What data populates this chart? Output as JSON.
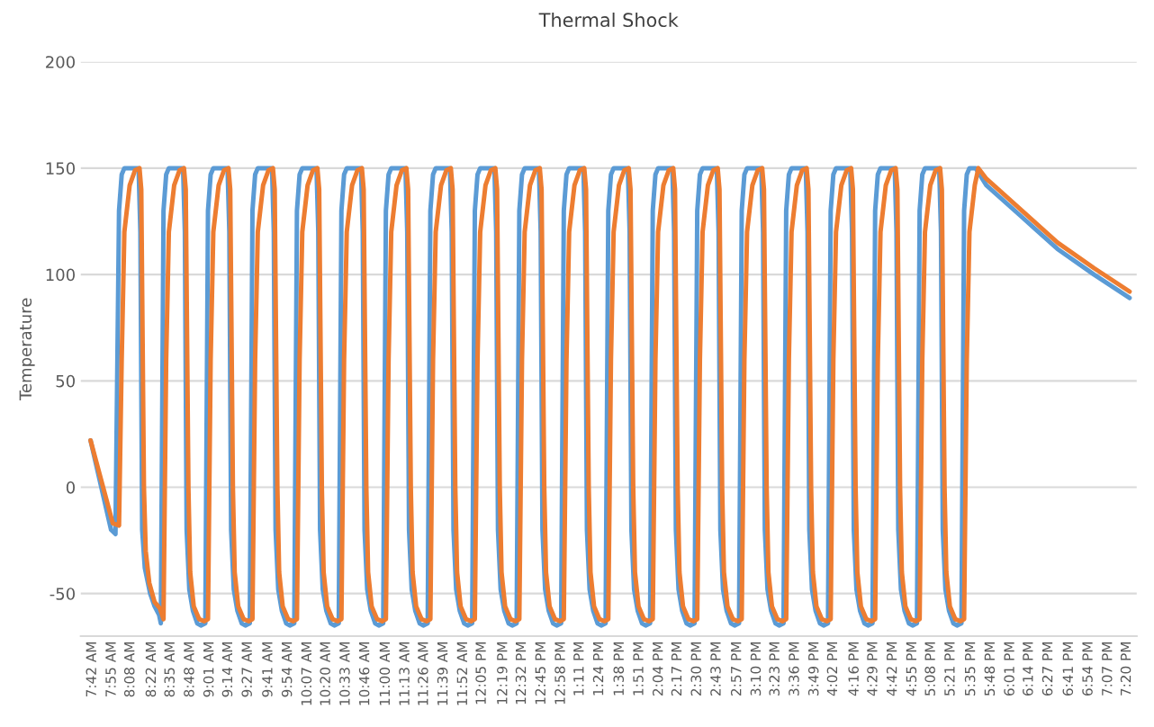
{
  "chart_data": {
    "type": "line",
    "title": "Thermal Shock",
    "ylabel": "Temperature",
    "xlim": [
      7.57,
      19.44
    ],
    "ylim": [
      -70,
      200
    ],
    "yticks": [
      -50,
      0,
      50,
      100,
      150,
      200
    ],
    "grid": "y",
    "legend": false,
    "marker": "none",
    "line_style": "solid",
    "xticks": [
      {
        "value": 7.7,
        "label": "7:42 AM"
      },
      {
        "value": 7.92,
        "label": "7:55 AM"
      },
      {
        "value": 8.13,
        "label": "8:08 AM"
      },
      {
        "value": 8.37,
        "label": "8:22 AM"
      },
      {
        "value": 8.58,
        "label": "8:35 AM"
      },
      {
        "value": 8.8,
        "label": "8:48 AM"
      },
      {
        "value": 9.02,
        "label": "9:01 AM"
      },
      {
        "value": 9.23,
        "label": "9:14 AM"
      },
      {
        "value": 9.45,
        "label": "9:27 AM"
      },
      {
        "value": 9.68,
        "label": "9:41 AM"
      },
      {
        "value": 9.9,
        "label": "9:54 AM"
      },
      {
        "value": 10.12,
        "label": "10:07 AM"
      },
      {
        "value": 10.33,
        "label": "10:20 AM"
      },
      {
        "value": 10.55,
        "label": "10:33 AM"
      },
      {
        "value": 10.77,
        "label": "10:46 AM"
      },
      {
        "value": 11,
        "label": "11:00 AM"
      },
      {
        "value": 11.22,
        "label": "11:13 AM"
      },
      {
        "value": 11.43,
        "label": "11:26 AM"
      },
      {
        "value": 11.65,
        "label": "11:39 AM"
      },
      {
        "value": 11.87,
        "label": "11:52 AM"
      },
      {
        "value": 12.08,
        "label": "12:05 PM"
      },
      {
        "value": 12.32,
        "label": "12:19 PM"
      },
      {
        "value": 12.53,
        "label": "12:32 PM"
      },
      {
        "value": 12.75,
        "label": "12:45 PM"
      },
      {
        "value": 12.97,
        "label": "12:58 PM"
      },
      {
        "value": 13.18,
        "label": "1:11 PM"
      },
      {
        "value": 13.4,
        "label": "1:24 PM"
      },
      {
        "value": 13.63,
        "label": "1:38 PM"
      },
      {
        "value": 13.85,
        "label": "1:51 PM"
      },
      {
        "value": 14.07,
        "label": "2:04 PM"
      },
      {
        "value": 14.28,
        "label": "2:17 PM"
      },
      {
        "value": 14.5,
        "label": "2:30 PM"
      },
      {
        "value": 14.72,
        "label": "2:43 PM"
      },
      {
        "value": 14.95,
        "label": "2:57 PM"
      },
      {
        "value": 15.17,
        "label": "3:10 PM"
      },
      {
        "value": 15.38,
        "label": "3:23 PM"
      },
      {
        "value": 15.6,
        "label": "3:36 PM"
      },
      {
        "value": 15.82,
        "label": "3:49 PM"
      },
      {
        "value": 16.03,
        "label": "4:02 PM"
      },
      {
        "value": 16.27,
        "label": "4:16 PM"
      },
      {
        "value": 16.48,
        "label": "4:29 PM"
      },
      {
        "value": 16.7,
        "label": "4:42 PM"
      },
      {
        "value": 16.92,
        "label": "4:55 PM"
      },
      {
        "value": 17.13,
        "label": "5:08 PM"
      },
      {
        "value": 17.35,
        "label": "5:21 PM"
      },
      {
        "value": 17.58,
        "label": "5:35 PM"
      },
      {
        "value": 17.8,
        "label": "5:48 PM"
      },
      {
        "value": 18.02,
        "label": "6:01 PM"
      },
      {
        "value": 18.23,
        "label": "6:14 PM"
      },
      {
        "value": 18.45,
        "label": "6:27 PM"
      },
      {
        "value": 18.68,
        "label": "6:41 PM"
      },
      {
        "value": 18.9,
        "label": "6:54 PM"
      },
      {
        "value": 19.12,
        "label": "7:07 PM"
      },
      {
        "value": 19.33,
        "label": "7:20 PM"
      }
    ],
    "series": [
      {
        "color": "#5b9bd5",
        "x": [
          7.68,
          7.91,
          7.96,
          8.0,
          8.03,
          8.06,
          8.22,
          8.24,
          8.26,
          8.29,
          8.35,
          8.4,
          8.45,
          8.47,
          8.5,
          8.53,
          8.56,
          8.72,
          8.74,
          8.76,
          8.79,
          8.83,
          8.88,
          8.92,
          8.97,
          9.0,
          9.03,
          9.06,
          9.22,
          9.24,
          9.26,
          9.29,
          9.33,
          9.38,
          9.42,
          9.47,
          9.5,
          9.53,
          9.56,
          9.72,
          9.74,
          9.76,
          9.79,
          9.83,
          9.88,
          9.92,
          9.97,
          10.0,
          10.03,
          10.06,
          10.22,
          10.24,
          10.26,
          10.29,
          10.33,
          10.38,
          10.42,
          10.47,
          10.5,
          10.53,
          10.56,
          10.72,
          10.74,
          10.76,
          10.79,
          10.83,
          10.88,
          10.92,
          10.97,
          11.0,
          11.03,
          11.06,
          11.22,
          11.24,
          11.26,
          11.29,
          11.33,
          11.38,
          11.42,
          11.47,
          11.5,
          11.53,
          11.56,
          11.72,
          11.74,
          11.76,
          11.79,
          11.83,
          11.88,
          11.92,
          11.97,
          12.0,
          12.03,
          12.06,
          12.22,
          12.24,
          12.26,
          12.29,
          12.33,
          12.38,
          12.42,
          12.47,
          12.5,
          12.53,
          12.56,
          12.72,
          12.74,
          12.76,
          12.79,
          12.83,
          12.88,
          12.92,
          12.97,
          13.0,
          13.03,
          13.06,
          13.22,
          13.24,
          13.26,
          13.29,
          13.33,
          13.38,
          13.42,
          13.47,
          13.5,
          13.53,
          13.56,
          13.72,
          13.74,
          13.76,
          13.79,
          13.83,
          13.88,
          13.92,
          13.97,
          14.0,
          14.03,
          14.06,
          14.22,
          14.24,
          14.26,
          14.29,
          14.33,
          14.38,
          14.42,
          14.47,
          14.5,
          14.53,
          14.56,
          14.72,
          14.74,
          14.76,
          14.79,
          14.83,
          14.88,
          14.92,
          14.97,
          15.0,
          15.03,
          15.06,
          15.22,
          15.24,
          15.26,
          15.29,
          15.33,
          15.38,
          15.42,
          15.47,
          15.5,
          15.53,
          15.56,
          15.72,
          15.74,
          15.76,
          15.79,
          15.83,
          15.88,
          15.92,
          15.97,
          16.0,
          16.03,
          16.06,
          16.22,
          16.24,
          16.26,
          16.29,
          16.33,
          16.38,
          16.42,
          16.47,
          16.5,
          16.53,
          16.56,
          16.72,
          16.74,
          16.76,
          16.79,
          16.83,
          16.88,
          16.92,
          16.97,
          17.0,
          17.03,
          17.06,
          17.22,
          17.24,
          17.26,
          17.29,
          17.33,
          17.38,
          17.42,
          17.47,
          17.5,
          17.53,
          17.56,
          17.63,
          17.75,
          18.15,
          18.55,
          18.96,
          19.36
        ],
        "values": [
          22,
          -20,
          -22,
          130,
          147,
          150,
          150,
          120,
          -20,
          -38,
          -50,
          -56,
          -60,
          -64,
          130,
          147,
          150,
          150,
          120,
          -20,
          -48,
          -58,
          -64,
          -65,
          -64,
          130,
          147,
          150,
          150,
          120,
          -20,
          -48,
          -58,
          -64,
          -65,
          -64,
          130,
          147,
          150,
          150,
          120,
          -20,
          -48,
          -58,
          -64,
          -65,
          -64,
          130,
          147,
          150,
          150,
          120,
          -20,
          -48,
          -58,
          -64,
          -65,
          -64,
          130,
          147,
          150,
          150,
          120,
          -20,
          -48,
          -58,
          -64,
          -65,
          -64,
          130,
          147,
          150,
          150,
          120,
          -20,
          -48,
          -58,
          -64,
          -65,
          -64,
          130,
          147,
          150,
          150,
          120,
          -20,
          -48,
          -58,
          -64,
          -65,
          -64,
          130,
          147,
          150,
          150,
          120,
          -20,
          -48,
          -58,
          -64,
          -65,
          -64,
          130,
          147,
          150,
          150,
          120,
          -20,
          -48,
          -58,
          -64,
          -65,
          -64,
          130,
          147,
          150,
          150,
          120,
          -20,
          -48,
          -58,
          -64,
          -65,
          -64,
          130,
          147,
          150,
          150,
          120,
          -20,
          -48,
          -58,
          -64,
          -65,
          -64,
          130,
          147,
          150,
          150,
          120,
          -20,
          -48,
          -58,
          -64,
          -65,
          -64,
          130,
          147,
          150,
          150,
          120,
          -20,
          -48,
          -58,
          -64,
          -65,
          -64,
          130,
          147,
          150,
          150,
          120,
          -20,
          -48,
          -58,
          -64,
          -65,
          -64,
          130,
          147,
          150,
          150,
          120,
          -20,
          -48,
          -58,
          -64,
          -65,
          -64,
          130,
          147,
          150,
          150,
          120,
          -20,
          -48,
          -58,
          -64,
          -65,
          -64,
          130,
          147,
          150,
          150,
          120,
          -20,
          -48,
          -58,
          -64,
          -65,
          -64,
          130,
          147,
          150,
          150,
          120,
          -20,
          -48,
          -58,
          -64,
          -65,
          -64,
          130,
          147,
          150,
          150,
          142,
          127,
          112,
          100,
          89
        ]
      },
      {
        "color": "#ed7d31",
        "x": [
          7.68,
          7.93,
          8.0,
          8.03,
          8.06,
          8.12,
          8.18,
          8.23,
          8.25,
          8.28,
          8.3,
          8.34,
          8.4,
          8.46,
          8.5,
          8.53,
          8.56,
          8.62,
          8.68,
          8.73,
          8.75,
          8.78,
          8.8,
          8.84,
          8.9,
          8.96,
          9.0,
          9.03,
          9.06,
          9.12,
          9.18,
          9.23,
          9.25,
          9.28,
          9.3,
          9.34,
          9.4,
          9.46,
          9.5,
          9.53,
          9.56,
          9.62,
          9.68,
          9.73,
          9.75,
          9.78,
          9.8,
          9.84,
          9.9,
          9.96,
          10.0,
          10.03,
          10.06,
          10.12,
          10.18,
          10.23,
          10.25,
          10.28,
          10.3,
          10.34,
          10.4,
          10.46,
          10.5,
          10.53,
          10.56,
          10.62,
          10.68,
          10.73,
          10.75,
          10.78,
          10.8,
          10.84,
          10.9,
          10.96,
          11.0,
          11.03,
          11.06,
          11.12,
          11.18,
          11.23,
          11.25,
          11.28,
          11.3,
          11.34,
          11.4,
          11.46,
          11.5,
          11.53,
          11.56,
          11.62,
          11.68,
          11.73,
          11.75,
          11.78,
          11.8,
          11.84,
          11.9,
          11.96,
          12.0,
          12.03,
          12.06,
          12.12,
          12.18,
          12.23,
          12.25,
          12.28,
          12.3,
          12.34,
          12.4,
          12.46,
          12.5,
          12.53,
          12.56,
          12.62,
          12.68,
          12.73,
          12.75,
          12.78,
          12.8,
          12.84,
          12.9,
          12.96,
          13.0,
          13.03,
          13.06,
          13.12,
          13.18,
          13.23,
          13.25,
          13.28,
          13.3,
          13.34,
          13.4,
          13.46,
          13.5,
          13.53,
          13.56,
          13.62,
          13.68,
          13.73,
          13.75,
          13.78,
          13.8,
          13.84,
          13.9,
          13.96,
          14.0,
          14.03,
          14.06,
          14.12,
          14.18,
          14.23,
          14.25,
          14.28,
          14.3,
          14.34,
          14.4,
          14.46,
          14.5,
          14.53,
          14.56,
          14.62,
          14.68,
          14.73,
          14.75,
          14.78,
          14.8,
          14.84,
          14.9,
          14.96,
          15.0,
          15.03,
          15.06,
          15.12,
          15.18,
          15.23,
          15.25,
          15.28,
          15.3,
          15.34,
          15.4,
          15.46,
          15.5,
          15.53,
          15.56,
          15.62,
          15.68,
          15.73,
          15.75,
          15.78,
          15.8,
          15.84,
          15.9,
          15.96,
          16.0,
          16.03,
          16.06,
          16.12,
          16.18,
          16.23,
          16.25,
          16.28,
          16.3,
          16.34,
          16.4,
          16.46,
          16.5,
          16.53,
          16.56,
          16.62,
          16.68,
          16.73,
          16.75,
          16.78,
          16.8,
          16.84,
          16.9,
          16.96,
          17.0,
          17.03,
          17.06,
          17.12,
          17.18,
          17.23,
          17.25,
          17.28,
          17.3,
          17.34,
          17.4,
          17.46,
          17.5,
          17.53,
          17.56,
          17.62,
          17.66,
          17.75,
          18.15,
          18.55,
          18.96,
          19.36
        ],
        "values": [
          22,
          -17,
          -18,
          60,
          120,
          142,
          149,
          150,
          140,
          0,
          -30,
          -45,
          -54,
          -57,
          -62,
          60,
          120,
          142,
          149,
          150,
          140,
          0,
          -40,
          -56,
          -62,
          -63,
          -62,
          60,
          120,
          142,
          149,
          150,
          140,
          0,
          -40,
          -56,
          -62,
          -63,
          -62,
          60,
          120,
          142,
          149,
          150,
          140,
          0,
          -40,
          -56,
          -62,
          -63,
          -62,
          60,
          120,
          142,
          149,
          150,
          140,
          0,
          -40,
          -56,
          -62,
          -63,
          -62,
          60,
          120,
          142,
          149,
          150,
          140,
          0,
          -40,
          -56,
          -62,
          -63,
          -62,
          60,
          120,
          142,
          149,
          150,
          140,
          0,
          -40,
          -56,
          -62,
          -63,
          -62,
          60,
          120,
          142,
          149,
          150,
          140,
          0,
          -40,
          -56,
          -62,
          -63,
          -62,
          60,
          120,
          142,
          149,
          150,
          140,
          0,
          -40,
          -56,
          -62,
          -63,
          -62,
          60,
          120,
          142,
          149,
          150,
          140,
          0,
          -40,
          -56,
          -62,
          -63,
          -62,
          60,
          120,
          142,
          149,
          150,
          140,
          0,
          -40,
          -56,
          -62,
          -63,
          -62,
          60,
          120,
          142,
          149,
          150,
          140,
          0,
          -40,
          -56,
          -62,
          -63,
          -62,
          60,
          120,
          142,
          149,
          150,
          140,
          0,
          -40,
          -56,
          -62,
          -63,
          -62,
          60,
          120,
          142,
          149,
          150,
          140,
          0,
          -40,
          -56,
          -62,
          -63,
          -62,
          60,
          120,
          142,
          149,
          150,
          140,
          0,
          -40,
          -56,
          -62,
          -63,
          -62,
          60,
          120,
          142,
          149,
          150,
          140,
          0,
          -40,
          -56,
          -62,
          -63,
          -62,
          60,
          120,
          142,
          149,
          150,
          140,
          0,
          -40,
          -56,
          -62,
          -63,
          -62,
          60,
          120,
          142,
          149,
          150,
          140,
          0,
          -40,
          -56,
          -62,
          -63,
          -62,
          60,
          120,
          142,
          149,
          150,
          140,
          0,
          -40,
          -56,
          -62,
          -63,
          -62,
          60,
          120,
          142,
          150,
          145,
          130,
          115,
          103,
          92
        ]
      }
    ]
  }
}
